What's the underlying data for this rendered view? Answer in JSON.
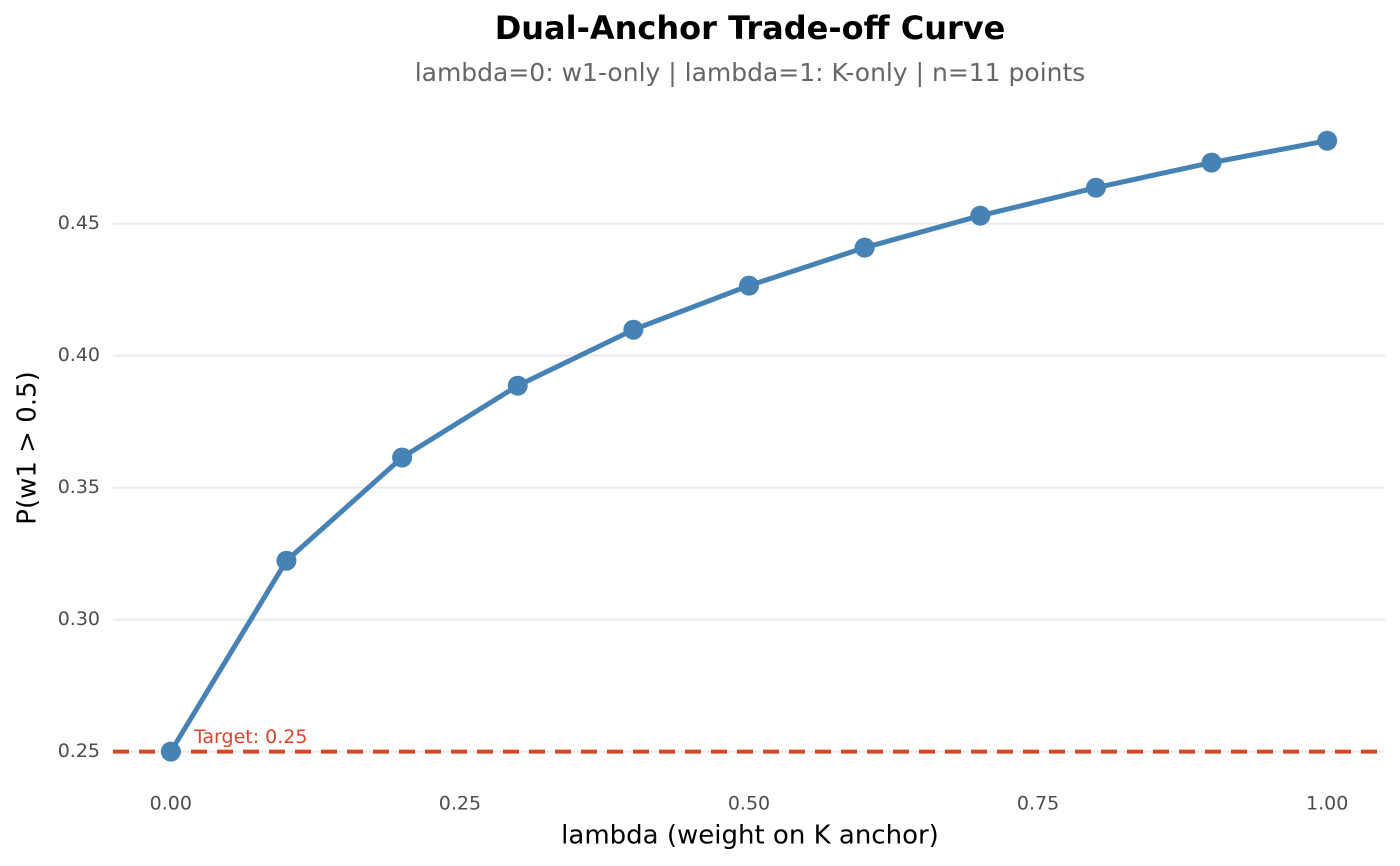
{
  "chart_data": {
    "type": "line",
    "title": "Dual-Anchor Trade-off Curve",
    "subtitle": "lambda=0: w1-only | lambda=1: K-only | n=11 points",
    "x_label": "lambda (weight on K anchor)",
    "y_label": "P(w1 > 0.5)",
    "x": [
      0,
      0.1,
      0.2,
      0.3,
      0.4,
      0.5,
      0.6,
      0.7,
      0.8,
      0.9,
      1.0
    ],
    "series": [
      {
        "color": "#4682b4",
        "values": [
          0.25,
          0.3223,
          0.3614,
          0.3886,
          0.4098,
          0.4265,
          0.4409,
          0.453,
          0.4636,
          0.4731,
          0.4814
        ]
      }
    ],
    "reference_line": {
      "value": 0.25,
      "label": "Target: 0.25",
      "color": "#d9472b"
    },
    "xlim": [
      -0.05,
      1.05
    ],
    "ylim": [
      0.24,
      0.49
    ],
    "xticks": [
      {
        "value": 0,
        "label": "0.00"
      },
      0.25,
      {
        "value": 0.5,
        "label": "0.50"
      },
      0.75,
      {
        "value": 1,
        "label": "1.00"
      }
    ],
    "yticks": [
      0.25,
      {
        "value": 0.3,
        "label": "0.30"
      },
      0.35,
      {
        "value": 0.4,
        "label": "0.40"
      },
      0.45
    ],
    "grid": true
  }
}
